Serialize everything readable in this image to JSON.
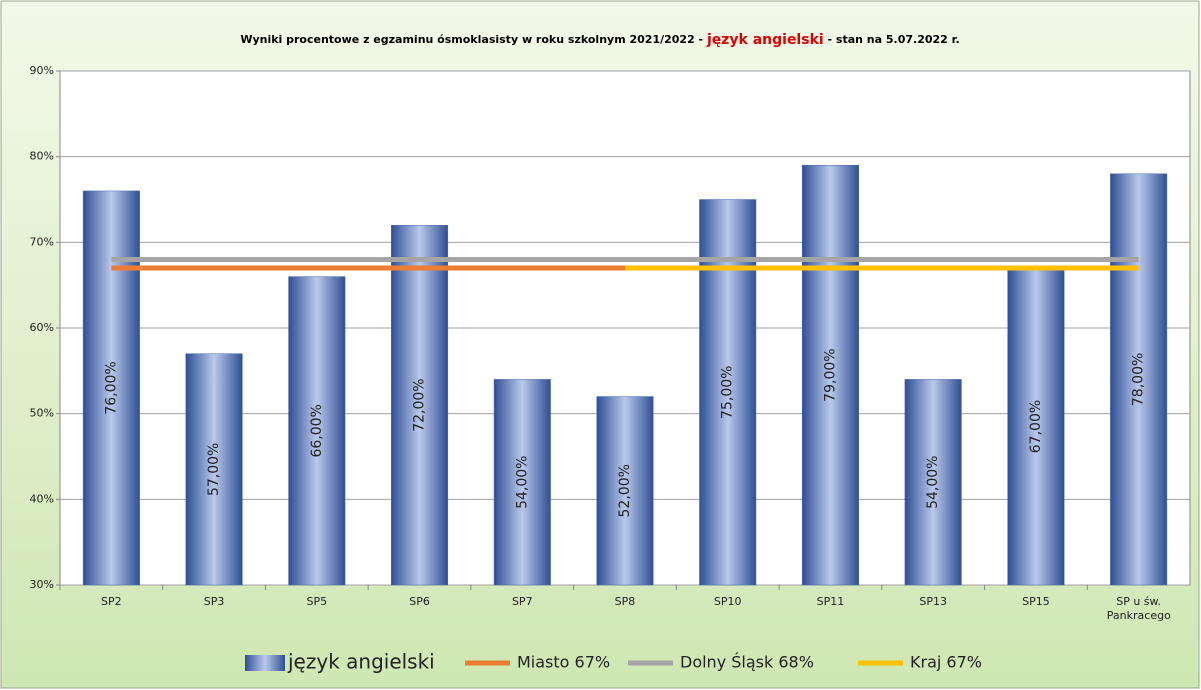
{
  "chart_data": {
    "type": "bar",
    "title": [
      "Wyniki procentowe z egzaminu ósmoklasisty w roku szkolnym 2021/2022 - ",
      "język angielski",
      " - stan na 5.07.2022 r."
    ],
    "categories": [
      "SP2",
      "SP3",
      "SP5",
      "SP6",
      "SP7",
      "SP8",
      "SP10",
      "SP11",
      "SP13",
      "SP15",
      "SP u św. Pankracego"
    ],
    "ylim": [
      30,
      90
    ],
    "yticks": [
      {
        "value": 30,
        "label": "30%"
      },
      {
        "value": 40,
        "label": "40%"
      },
      {
        "value": 50,
        "label": "50%"
      },
      {
        "value": 60,
        "label": "60%"
      },
      {
        "value": 70,
        "label": "70%"
      },
      {
        "value": 80,
        "label": "80%"
      },
      {
        "value": 90,
        "label": "90%"
      }
    ],
    "grid": true,
    "legend": "bottom",
    "series": [
      {
        "name": "język angielski",
        "type": "bar",
        "color": "#4a6bb0",
        "values": [
          76,
          57,
          66,
          72,
          54,
          52,
          75,
          79,
          54,
          67,
          78
        ],
        "value_labels": [
          "76,00%",
          "57,00%",
          "66,00%",
          "72,00%",
          "54,00%",
          "52,00%",
          "75,00%",
          "79,00%",
          "54,00%",
          "67,00%",
          "78,00%"
        ]
      },
      {
        "name": "Miasto 67%",
        "type": "line",
        "color": "#ed7d31",
        "values": [
          67,
          67,
          67,
          67,
          67,
          67,
          null,
          null,
          null,
          null,
          null
        ]
      },
      {
        "name": "Dolny Śląsk 68%",
        "type": "line",
        "color": "#a5a5a5",
        "values": [
          68,
          68,
          68,
          68,
          68,
          68,
          68,
          68,
          68,
          68,
          68
        ]
      },
      {
        "name": "Kraj 67%",
        "type": "line",
        "color": "#ffc000",
        "values": [
          67,
          67,
          67,
          67,
          67,
          67,
          67,
          67,
          67,
          67,
          67
        ]
      }
    ]
  }
}
